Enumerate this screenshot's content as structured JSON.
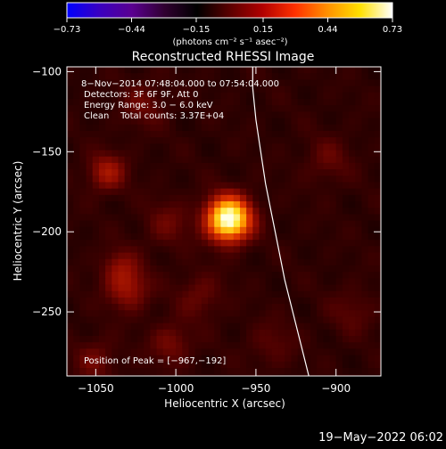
{
  "colorbar": {
    "ticks": [
      "−0.73",
      "−0.44",
      "−0.15",
      "0.15",
      "0.44",
      "0.73"
    ],
    "tick_values": [
      -0.73,
      -0.44,
      -0.15,
      0.15,
      0.44,
      0.73
    ],
    "units_label": "(photons cm⁻² s⁻¹ asec⁻²)",
    "colors": [
      "#0000ff",
      "#3a00c0",
      "#5a0090",
      "#300030",
      "#000000",
      "#5a0000",
      "#b00000",
      "#ff3000",
      "#ff9000",
      "#ffe000",
      "#ffffff"
    ]
  },
  "plot": {
    "title": "Reconstructed RHESSI Image",
    "info_lines": [
      "8−Nov−2014 07:48:04.000 to 07:54:04.000",
      "Detectors: 3F 6F 9F, Att 0",
      "Energy Range: 3.0 − 6.0 keV",
      "Clean    Total counts: 3.37E+04"
    ],
    "peak_label": "Position of Peak = [−967,−192]"
  },
  "chart_data": {
    "type": "heatmap",
    "title": "Reconstructed RHESSI Image",
    "xlabel": "Heliocentric X (arcsec)",
    "ylabel": "Heliocentric Y (arcsec)",
    "xlim": [
      -1068,
      -872
    ],
    "ylim": [
      -290,
      -97
    ],
    "x_ticks": [
      -1050,
      -1000,
      -950,
      -900
    ],
    "x_tick_labels": [
      "−1050",
      "−1000",
      "−950",
      "−900"
    ],
    "y_ticks": [
      -100,
      -150,
      -200,
      -250
    ],
    "y_tick_labels": [
      "−100",
      "−150",
      "−200",
      "−250"
    ],
    "color_range": [
      -0.73,
      0.73
    ],
    "sources": [
      {
        "x": -967,
        "y": -192,
        "intensity": 0.73,
        "sigma": 9
      },
      {
        "x": -1043,
        "y": -163,
        "intensity": 0.17,
        "sigma": 8
      },
      {
        "x": -1030,
        "y": -236,
        "intensity": 0.15,
        "sigma": 9
      },
      {
        "x": -1035,
        "y": -222,
        "intensity": 0.11,
        "sigma": 8
      },
      {
        "x": -1003,
        "y": -270,
        "intensity": 0.1,
        "sigma": 9
      },
      {
        "x": -1020,
        "y": -120,
        "intensity": 0.08,
        "sigma": 10
      },
      {
        "x": -1050,
        "y": -280,
        "intensity": 0.09,
        "sigma": 9
      },
      {
        "x": -1005,
        "y": -195,
        "intensity": 0.08,
        "sigma": 10
      },
      {
        "x": -985,
        "y": -240,
        "intensity": 0.08,
        "sigma": 10
      },
      {
        "x": -905,
        "y": -155,
        "intensity": 0.07,
        "sigma": 10
      },
      {
        "x": -890,
        "y": -250,
        "intensity": 0.06,
        "sigma": 10
      },
      {
        "x": -940,
        "y": -270,
        "intensity": 0.06,
        "sigma": 10
      }
    ],
    "limb_points": [
      {
        "x": -952,
        "y": -97
      },
      {
        "x": -952,
        "y": -110
      },
      {
        "x": -950,
        "y": -130
      },
      {
        "x": -947,
        "y": -150
      },
      {
        "x": -944,
        "y": -170
      },
      {
        "x": -940,
        "y": -190
      },
      {
        "x": -936,
        "y": -210
      },
      {
        "x": -932,
        "y": -230
      },
      {
        "x": -927,
        "y": -250
      },
      {
        "x": -922,
        "y": -270
      },
      {
        "x": -917,
        "y": -290
      }
    ]
  },
  "footer": {
    "timestamp": "19−May−2022 06:02"
  }
}
